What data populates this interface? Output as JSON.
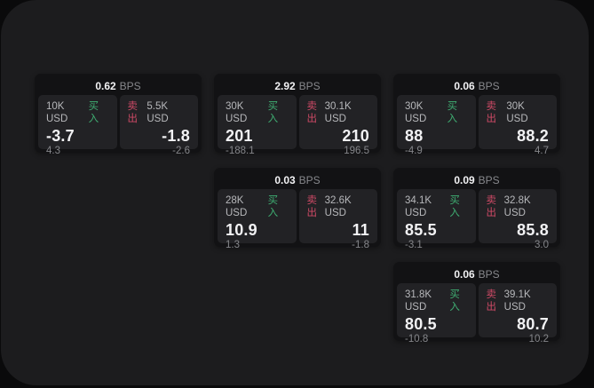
{
  "colors": {
    "window_bg": "#1c1c1e",
    "card_bg": "#121214",
    "panel_bg": "#222225",
    "buy_green": "#3fae72",
    "sell_red": "#cf4a66",
    "value_white": "#f2f2f4",
    "amount_grey": "#b7b8bb",
    "muted_grey": "#87888c",
    "delta_grey": "#85868a"
  },
  "cards": [
    {
      "row": 1,
      "col": 1,
      "bps_value": "0.62",
      "bps_unit": "BPS",
      "buy_amount": "10K USD",
      "buy_label": "买入",
      "buy_value": "-3.7",
      "buy_delta": "4.3",
      "sell_label": "卖出",
      "sell_amount": "5.5K USD",
      "sell_value": "-1.8",
      "sell_delta": "-2.6"
    },
    {
      "row": 1,
      "col": 2,
      "bps_value": "2.92",
      "bps_unit": "BPS",
      "buy_amount": "30K USD",
      "buy_label": "买入",
      "buy_value": "201",
      "buy_delta": "-188.1",
      "sell_label": "卖出",
      "sell_amount": "30.1K USD",
      "sell_value": "210",
      "sell_delta": "196.5"
    },
    {
      "row": 1,
      "col": 3,
      "bps_value": "0.06",
      "bps_unit": "BPS",
      "buy_amount": "30K USD",
      "buy_label": "买入",
      "buy_value": "88",
      "buy_delta": "-4.9",
      "sell_label": "卖出",
      "sell_amount": "30K USD",
      "sell_value": "88.2",
      "sell_delta": "4.7"
    },
    {
      "row": 2,
      "col": 2,
      "bps_value": "0.03",
      "bps_unit": "BPS",
      "buy_amount": "28K USD",
      "buy_label": "买入",
      "buy_value": "10.9",
      "buy_delta": "1.3",
      "sell_label": "卖出",
      "sell_amount": "32.6K USD",
      "sell_value": "11",
      "sell_delta": "-1.8"
    },
    {
      "row": 2,
      "col": 3,
      "bps_value": "0.09",
      "bps_unit": "BPS",
      "buy_amount": "34.1K USD",
      "buy_label": "买入",
      "buy_value": "85.5",
      "buy_delta": "-3.1",
      "sell_label": "卖出",
      "sell_amount": "32.8K USD",
      "sell_value": "85.8",
      "sell_delta": "3.0"
    },
    {
      "row": 3,
      "col": 3,
      "bps_value": "0.06",
      "bps_unit": "BPS",
      "buy_amount": "31.8K USD",
      "buy_label": "买入",
      "buy_value": "80.5",
      "buy_delta": "-10.8",
      "sell_label": "卖出",
      "sell_amount": "39.1K USD",
      "sell_value": "80.7",
      "sell_delta": "10.2"
    }
  ]
}
